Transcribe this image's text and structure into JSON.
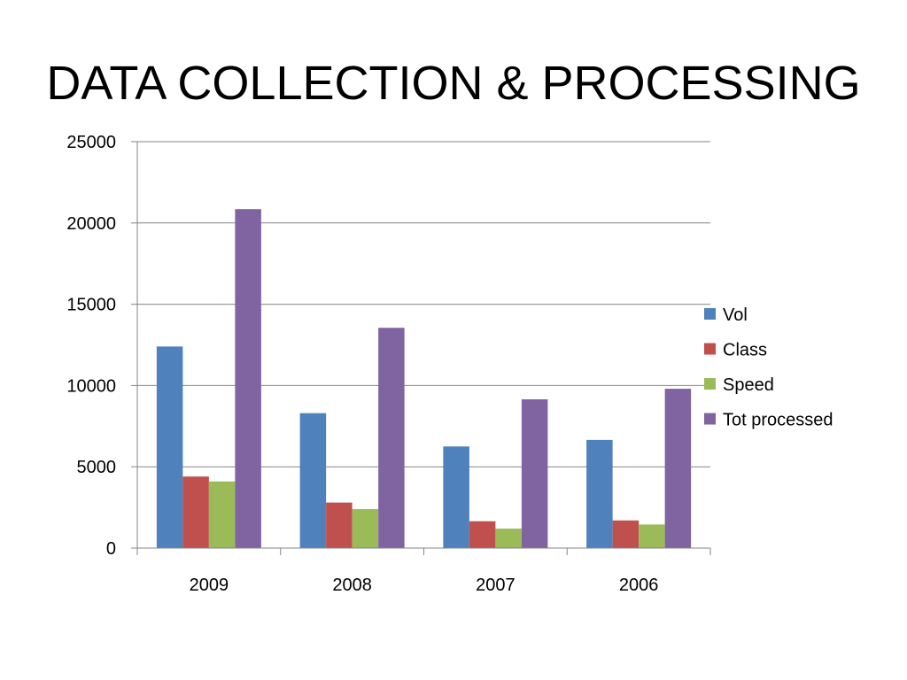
{
  "slide": {
    "title": "DATA COLLECTION & PROCESSING"
  },
  "chart_data": {
    "type": "bar",
    "categories": [
      "2009",
      "2008",
      "2007",
      "2006"
    ],
    "series": [
      {
        "name": "Vol",
        "values": [
          12400,
          8300,
          6250,
          6650
        ],
        "color": "#4F81BD"
      },
      {
        "name": "Class",
        "values": [
          4400,
          2800,
          1650,
          1700
        ],
        "color": "#C0504D"
      },
      {
        "name": "Speed",
        "values": [
          4100,
          2400,
          1200,
          1450
        ],
        "color": "#9BBB59"
      },
      {
        "name": "Tot processed",
        "values": [
          20850,
          13550,
          9150,
          9800
        ],
        "color": "#8064A2"
      }
    ],
    "yticks": [
      "0",
      "5000",
      "10000",
      "15000",
      "20000",
      "25000"
    ],
    "ylim": [
      0,
      25000
    ],
    "grid": true,
    "legend_position": "right",
    "xlabel": "",
    "ylabel": ""
  }
}
